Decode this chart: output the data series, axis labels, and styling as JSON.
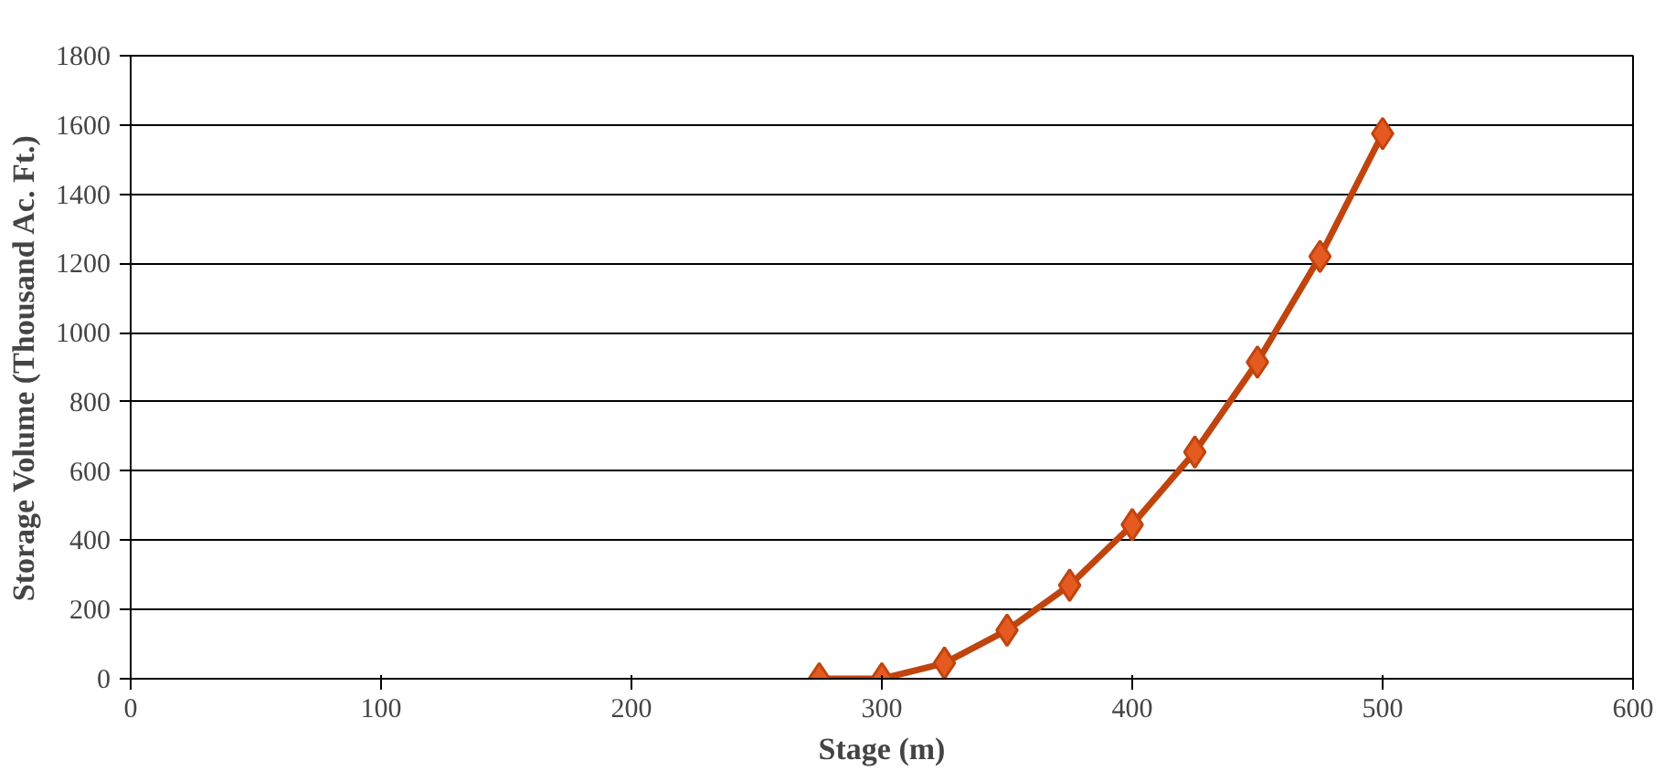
{
  "chart_data": {
    "type": "line",
    "xlabel": "Stage (m)",
    "ylabel": "Storage Volume (Thousand Ac. Ft.)",
    "x": [
      275,
      300,
      325,
      350,
      375,
      400,
      425,
      450,
      475,
      500
    ],
    "series": [
      {
        "color": "#c0440e",
        "values": [
          0,
          0,
          45,
          140,
          270,
          445,
          655,
          915,
          1220,
          1575
        ]
      }
    ],
    "xlim": [
      0,
      600
    ],
    "xticks": [
      0,
      100,
      200,
      300,
      400,
      500,
      600
    ],
    "ylim": [
      0,
      1800
    ],
    "yticks": [
      0,
      200,
      400,
      600,
      800,
      1000,
      1200,
      1400,
      1600,
      1800
    ],
    "grid": "y",
    "marker": "diamond",
    "line_style": "solid"
  }
}
